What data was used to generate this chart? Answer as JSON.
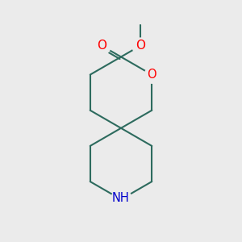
{
  "background_color": "#ebebeb",
  "bond_color": "#2d6b5e",
  "bond_width": 1.5,
  "o_color": "#ff0000",
  "n_color": "#0000cc",
  "figsize": [
    3.0,
    3.0
  ],
  "dpi": 100,
  "xlim": [
    0,
    10
  ],
  "ylim": [
    0,
    10
  ],
  "spiro_x": 5.0,
  "spiro_y": 4.7,
  "ring_r": 1.5
}
